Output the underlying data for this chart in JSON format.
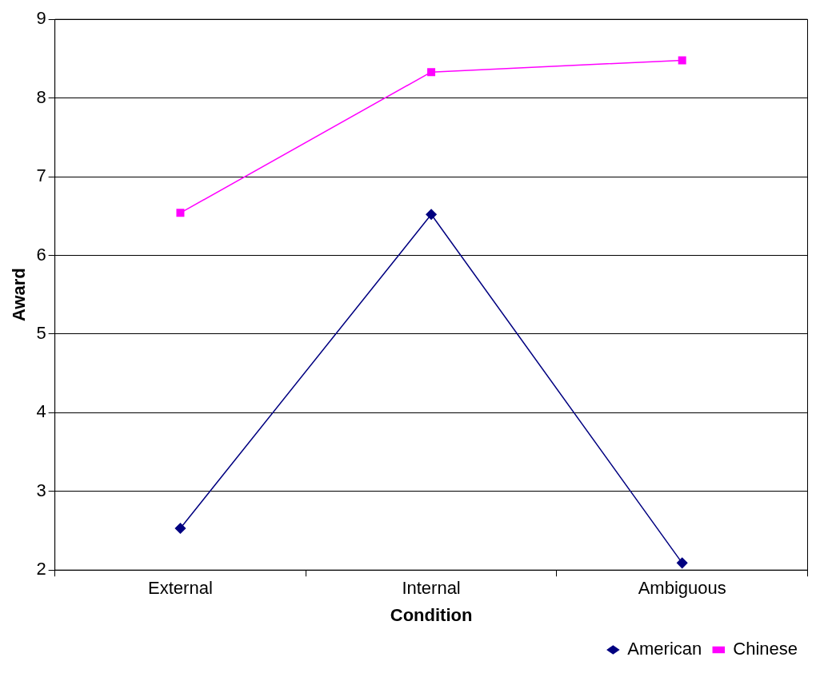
{
  "chart_data": {
    "type": "line",
    "xlabel": "Condition",
    "ylabel": "Award",
    "categories": [
      "External",
      "Internal",
      "Ambiguous"
    ],
    "series": [
      {
        "name": "American",
        "color": "#000080",
        "marker": "diamond",
        "values": [
          2.53,
          6.52,
          2.09
        ]
      },
      {
        "name": "Chinese",
        "color": "#ff00ff",
        "marker": "square",
        "values": [
          6.54,
          8.33,
          8.48
        ]
      }
    ],
    "ylim": [
      2,
      9
    ],
    "yticks": [
      2,
      3,
      4,
      5,
      6,
      7,
      8,
      9
    ],
    "grid": "y",
    "legend": "bottom right",
    "line_style": "solid"
  }
}
